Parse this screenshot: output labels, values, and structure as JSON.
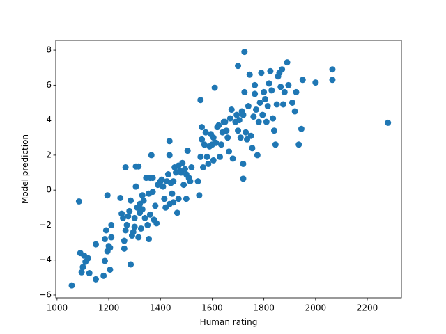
{
  "chart_data": {
    "type": "scatter",
    "x_label": "Human rating",
    "y_label": "Model prediction",
    "color": "#1f77b4",
    "xlim": [
      995,
      2332
    ],
    "ylim": [
      -6.16,
      8.56
    ],
    "xticks": [
      1000,
      1200,
      1400,
      1600,
      1800,
      2000,
      2200
    ],
    "yticks": [
      {
        "value": -6,
        "label": "−6"
      },
      {
        "value": -4,
        "label": "−4"
      },
      {
        "value": -2,
        "label": "−2"
      },
      0,
      2,
      4,
      6,
      8
    ],
    "x": [
      1057,
      1085,
      1090,
      1095,
      1100,
      1105,
      1110,
      1120,
      1125,
      1150,
      1150,
      1180,
      1185,
      1185,
      1190,
      1195,
      1195,
      1200,
      1205,
      1205,
      1210,
      1210,
      1245,
      1250,
      1255,
      1260,
      1260,
      1265,
      1265,
      1270,
      1275,
      1280,
      1285,
      1285,
      1290,
      1295,
      1300,
      1300,
      1305,
      1305,
      1310,
      1315,
      1315,
      1320,
      1320,
      1325,
      1330,
      1330,
      1335,
      1340,
      1345,
      1350,
      1355,
      1355,
      1360,
      1360,
      1365,
      1370,
      1370,
      1375,
      1380,
      1385,
      1390,
      1400,
      1405,
      1410,
      1415,
      1420,
      1425,
      1430,
      1435,
      1435,
      1435,
      1440,
      1445,
      1450,
      1450,
      1455,
      1460,
      1465,
      1470,
      1470,
      1475,
      1480,
      1485,
      1490,
      1495,
      1500,
      1500,
      1505,
      1510,
      1515,
      1520,
      1545,
      1550,
      1555,
      1555,
      1560,
      1560,
      1565,
      1570,
      1575,
      1580,
      1585,
      1590,
      1595,
      1600,
      1605,
      1605,
      1610,
      1615,
      1620,
      1625,
      1630,
      1635,
      1640,
      1645,
      1650,
      1655,
      1660,
      1665,
      1670,
      1675,
      1680,
      1690,
      1695,
      1700,
      1700,
      1705,
      1710,
      1715,
      1720,
      1720,
      1720,
      1725,
      1725,
      1730,
      1735,
      1740,
      1745,
      1750,
      1755,
      1760,
      1765,
      1765,
      1770,
      1775,
      1780,
      1785,
      1790,
      1795,
      1800,
      1805,
      1810,
      1815,
      1820,
      1825,
      1830,
      1835,
      1840,
      1845,
      1850,
      1855,
      1860,
      1865,
      1870,
      1875,
      1880,
      1890,
      1895,
      1910,
      1920,
      1925,
      1935,
      1945,
      1950,
      2000,
      2065,
      2065,
      2280
    ],
    "values": [
      -5.45,
      -0.65,
      -3.6,
      -4.7,
      -4.4,
      -3.75,
      -4.1,
      -3.9,
      -4.75,
      -5.1,
      -3.1,
      -4.9,
      -4.05,
      -2.8,
      -2.3,
      -0.3,
      -3.5,
      -3.2,
      -4.55,
      -3.3,
      -2.7,
      -2.0,
      -0.45,
      -1.35,
      -1.6,
      -3.35,
      -2.9,
      1.3,
      -2.3,
      -2.0,
      -1.5,
      -1.2,
      -4.25,
      -0.6,
      -2.6,
      -2.4,
      -2.1,
      -1.6,
      0.2,
      1.35,
      -1.0,
      1.35,
      -2.7,
      -1.3,
      -0.8,
      -2.2,
      -1.1,
      -0.3,
      -0.6,
      -1.6,
      0.7,
      -2.0,
      -0.2,
      -2.8,
      0.7,
      -1.4,
      2.0,
      -0.1,
      0.7,
      -1.7,
      -0.9,
      -1.9,
      0.3,
      0.5,
      0.6,
      0.2,
      -0.5,
      -1.0,
      0.5,
      0.9,
      2.0,
      2.8,
      -0.8,
      0.4,
      -0.2,
      0.5,
      -0.7,
      1.3,
      1.0,
      -1.3,
      1.4,
      -0.5,
      1.1,
      1.0,
      1.55,
      0.3,
      1.2,
      -0.5,
      0.9,
      2.25,
      0.7,
      0.5,
      1.3,
      0.5,
      -0.3,
      5.15,
      1.9,
      2.9,
      3.6,
      1.3,
      2.6,
      3.3,
      1.9,
      1.5,
      2.5,
      3.2,
      2.6,
      1.7,
      3.0,
      5.85,
      2.7,
      3.6,
      3.7,
      1.9,
      2.6,
      3.3,
      3.9,
      3.9,
      3.4,
      3.0,
      2.2,
      4.1,
      4.6,
      1.8,
      3.9,
      4.3,
      3.4,
      7.1,
      4.0,
      3.0,
      4.5,
      0.65,
      1.5,
      4.3,
      5.6,
      7.9,
      3.3,
      2.9,
      4.8,
      6.6,
      3.1,
      2.4,
      4.2,
      6.0,
      5.5,
      4.6,
      2.0,
      3.9,
      5.0,
      6.7,
      4.3,
      5.6,
      5.2,
      3.9,
      4.8,
      6.1,
      6.8,
      5.7,
      4.1,
      3.4,
      2.6,
      4.9,
      6.5,
      6.7,
      5.9,
      6.9,
      4.9,
      5.6,
      7.3,
      6.0,
      5.0,
      4.5,
      5.6,
      2.6,
      3.5,
      6.3,
      6.15,
      6.3,
      6.9,
      3.85
    ]
  }
}
